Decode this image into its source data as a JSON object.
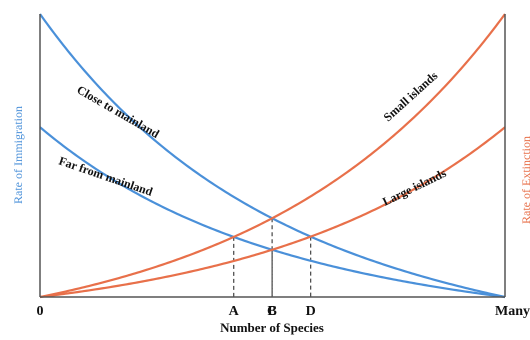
{
  "chart_data": {
    "type": "line",
    "x_ticks": [
      "0",
      "A",
      "B",
      "C",
      "D",
      "Many"
    ],
    "xlabel": "Number of Species",
    "ylabel_left": "Rate of Immigration",
    "ylabel_right": "Rate of Extinction",
    "grid": false,
    "colors": {
      "immigration": "#4a90d9",
      "extinction": "#e8704a",
      "axis": "#555555"
    },
    "series": [
      {
        "name": "Close to mainland",
        "kind": "immigration",
        "values_at": {
          "0": 1.0,
          "Many": 0.0
        }
      },
      {
        "name": "Far from mainland",
        "kind": "immigration",
        "values_at": {
          "0": 0.6,
          "Many": 0.0
        }
      },
      {
        "name": "Small islands",
        "kind": "extinction",
        "values_at": {
          "0": 0.0,
          "Many": 1.0
        }
      },
      {
        "name": "Large islands",
        "kind": "extinction",
        "values_at": {
          "0": 0.0,
          "Many": 0.6
        }
      }
    ],
    "equilibria": [
      {
        "label": "A",
        "between": [
          "Far from mainland",
          "Small islands"
        ]
      },
      {
        "label": "B",
        "between": [
          "Close to mainland",
          "Small islands"
        ]
      },
      {
        "label": "C",
        "between": [
          "Far from mainland",
          "Large islands"
        ]
      },
      {
        "label": "D",
        "between": [
          "Close to mainland",
          "Large islands"
        ]
      }
    ]
  }
}
